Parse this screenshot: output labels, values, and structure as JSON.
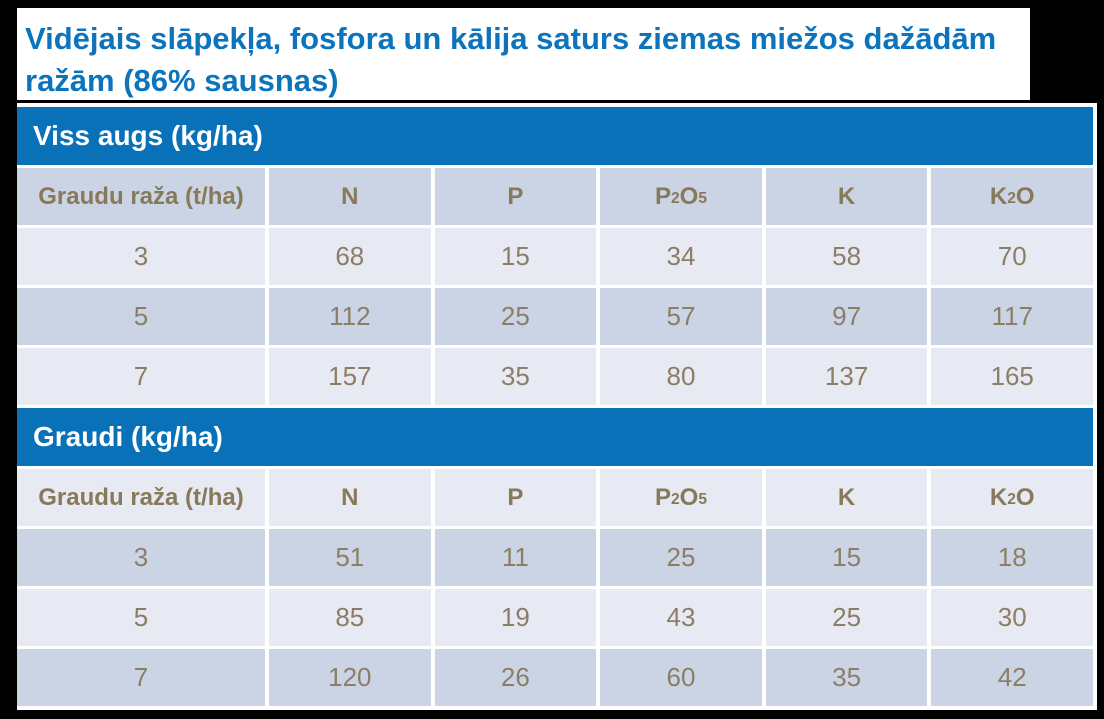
{
  "page": {
    "background_color": "#000000",
    "slide_background": "#ffffff"
  },
  "title": {
    "text": "Vidējais slāpekļa, fosfora un kālija saturs ziemas miežos dažādām ražām (86% sausnas)",
    "color": "#0c74bd"
  },
  "table": {
    "accent_color": "#0971b8",
    "band_light_color": "#e7eaf2",
    "band_dark_color": "#cbd4e4",
    "header_text_color": "#87795a",
    "data_text_color": "#8c7e66",
    "sections": [
      {
        "id": "viss-augs",
        "header": "Viss augs (kg/ha)",
        "columns": [
          "Graudu raža (t/ha)",
          "N",
          "P",
          "P₂O₅",
          "K",
          "K₂O"
        ],
        "banding": [
          "dark",
          "light",
          "dark",
          "light"
        ],
        "rows": [
          [
            "3",
            "68",
            "15",
            "34",
            "58",
            "70"
          ],
          [
            "5",
            "112",
            "25",
            "57",
            "97",
            "117"
          ],
          [
            "7",
            "157",
            "35",
            "80",
            "137",
            "165"
          ]
        ]
      },
      {
        "id": "graudi",
        "header": "Graudi (kg/ha)",
        "columns": [
          "Graudu raža (t/ha)",
          "N",
          "P",
          "P₂O₅",
          "K",
          "K₂O"
        ],
        "banding": [
          "light",
          "dark",
          "light",
          "dark"
        ],
        "rows": [
          [
            "3",
            "51",
            "11",
            "25",
            "15",
            "18"
          ],
          [
            "5",
            "85",
            "19",
            "43",
            "25",
            "30"
          ],
          [
            "7",
            "120",
            "26",
            "60",
            "35",
            "42"
          ]
        ]
      }
    ]
  },
  "chart_data": [
    {
      "type": "table",
      "title": "Viss augs (kg/ha)",
      "columns": [
        "Graudu raža (t/ha)",
        "N",
        "P",
        "P2O5",
        "K",
        "K2O"
      ],
      "rows": [
        [
          3,
          68,
          15,
          34,
          58,
          70
        ],
        [
          5,
          112,
          25,
          57,
          97,
          117
        ],
        [
          7,
          157,
          35,
          80,
          137,
          165
        ]
      ]
    },
    {
      "type": "table",
      "title": "Graudi (kg/ha)",
      "columns": [
        "Graudu raža (t/ha)",
        "N",
        "P",
        "P2O5",
        "K",
        "K2O"
      ],
      "rows": [
        [
          3,
          51,
          11,
          25,
          15,
          18
        ],
        [
          5,
          85,
          19,
          43,
          25,
          30
        ],
        [
          7,
          120,
          26,
          60,
          35,
          42
        ]
      ]
    }
  ]
}
